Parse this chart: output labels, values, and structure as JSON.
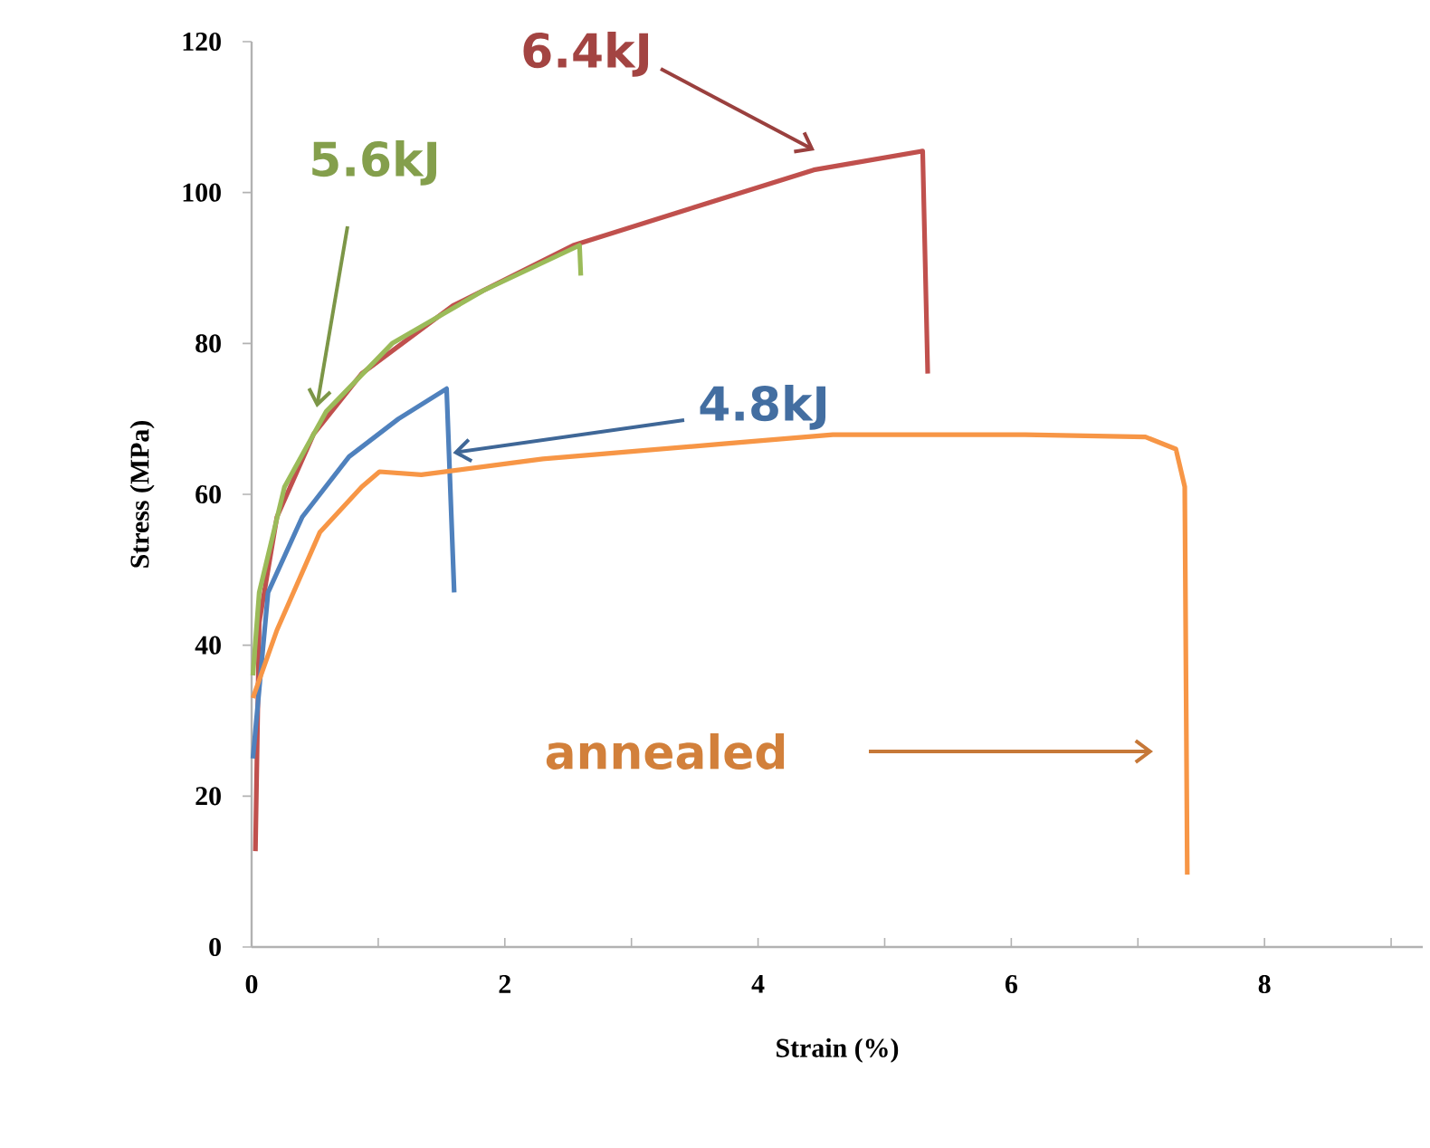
{
  "chart_data": {
    "type": "line",
    "xlabel": "Strain (%)",
    "ylabel": "Stress (MPa)",
    "xlim": [
      0,
      9.25
    ],
    "ylim": [
      0,
      120
    ],
    "xticks": [
      0,
      {
        "value": 1,
        "label": null
      },
      2,
      {
        "value": 3,
        "label": null
      },
      4,
      {
        "value": 5,
        "label": null
      },
      6,
      {
        "value": 7,
        "label": null
      },
      8,
      {
        "value": 9,
        "label": null
      }
    ],
    "yticks": [
      0,
      20,
      40,
      60,
      80,
      100,
      120
    ],
    "grid": false,
    "marker": "none",
    "line_style": "solid",
    "series": [
      {
        "color": "#c0504d",
        "x": [
          0.03,
          0.06,
          0.2,
          0.49,
          0.87,
          1.59,
          2.54,
          3.49,
          4.44,
          5.3,
          5.34
        ],
        "values": [
          12.7,
          43,
          57,
          68,
          76,
          85,
          93,
          98,
          103,
          105.5,
          76
        ]
      },
      {
        "color": "#9bbb59",
        "x": [
          0.01,
          0.06,
          0.26,
          0.59,
          1.11,
          1.83,
          2.59,
          2.6
        ],
        "values": [
          36,
          47,
          61,
          71,
          80,
          87,
          93,
          89
        ]
      },
      {
        "color": "#4f81bd",
        "x": [
          0.01,
          0.13,
          0.4,
          0.77,
          1.16,
          1.54,
          1.6
        ],
        "values": [
          25,
          47,
          57,
          65,
          70,
          74,
          47
        ]
      },
      {
        "color": "#f79646",
        "x": [
          0.01,
          0.2,
          0.54,
          0.87,
          1.01,
          1.34,
          2.3,
          3.73,
          4.59,
          6.11,
          7.06,
          7.3,
          7.37,
          7.39
        ],
        "values": [
          33,
          42,
          55,
          61,
          63,
          62.6,
          64.7,
          66.7,
          67.9,
          67.9,
          67.6,
          66,
          61,
          9.6
        ]
      }
    ],
    "annotations": [
      "6.4kJ",
      "5.6kJ",
      {
        "text": "4.8kJ",
        "x": 1.59,
        "y": 65.5
      },
      "annealed"
    ]
  }
}
